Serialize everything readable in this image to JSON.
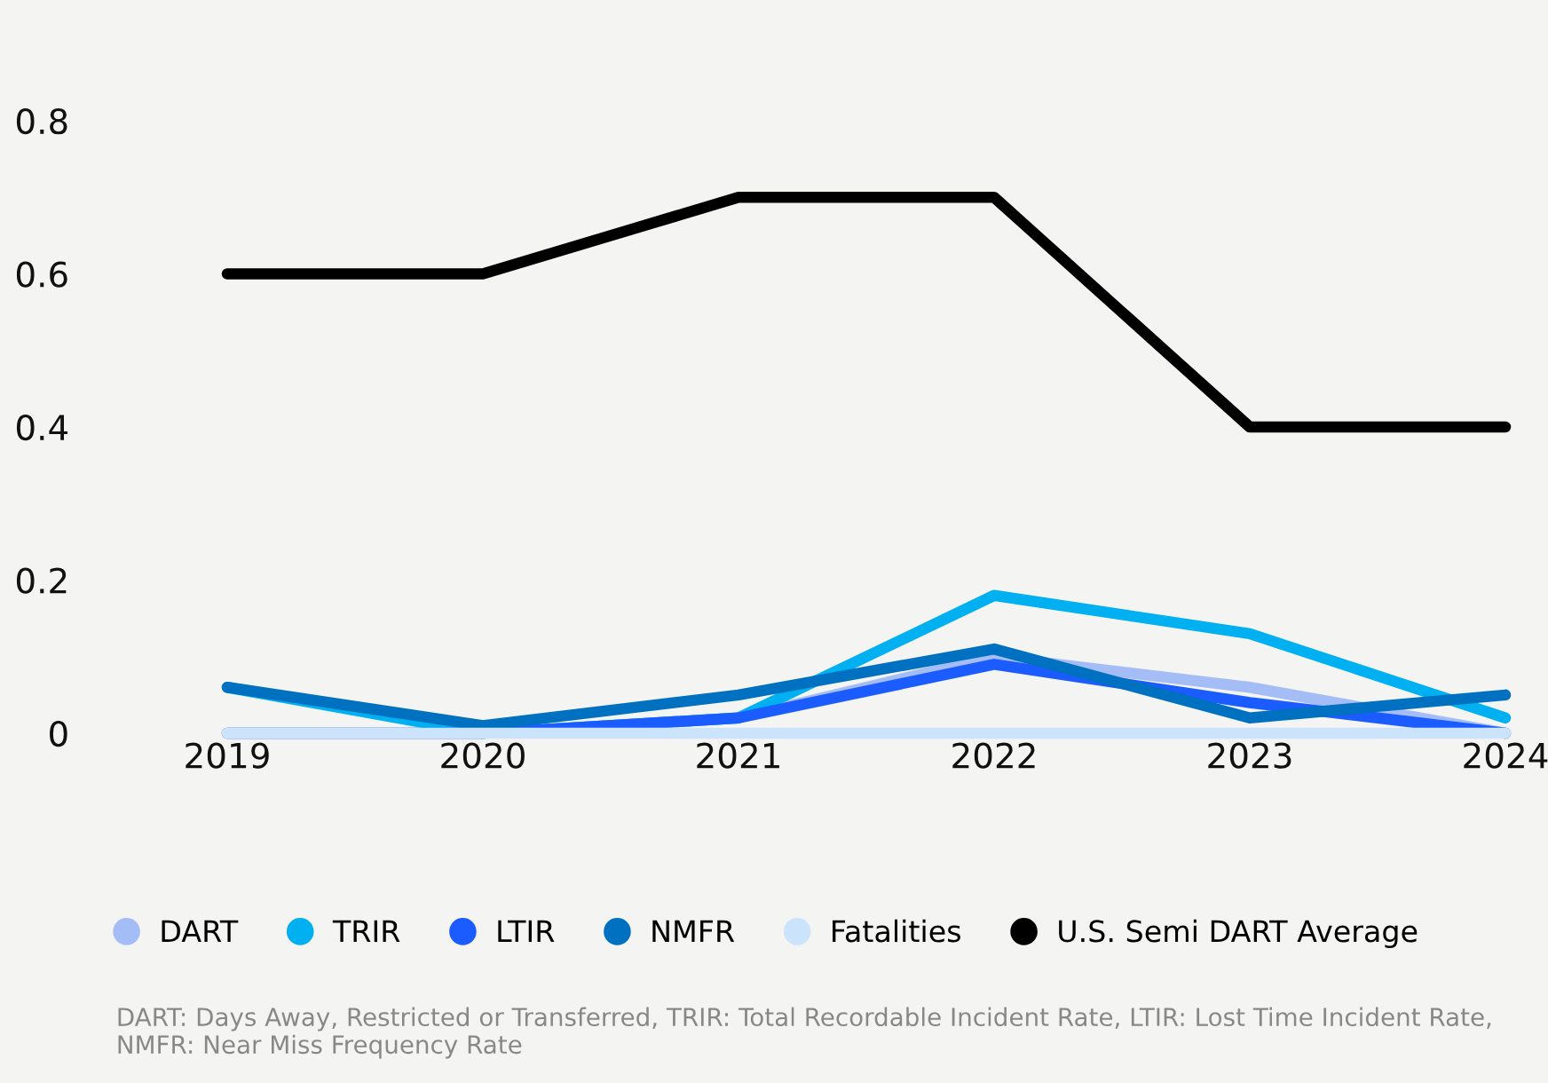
{
  "chart_data": {
    "type": "line",
    "categories": [
      "2019",
      "2020",
      "2021",
      "2022",
      "2023",
      "2024"
    ],
    "series": [
      {
        "name": "DART",
        "color": "#a4bdf7",
        "values": [
          0,
          0,
          0.02,
          0.1,
          0.06,
          0
        ]
      },
      {
        "name": "TRIR",
        "color": "#00b0f0",
        "values": [
          0.06,
          0,
          0.02,
          0.18,
          0.13,
          0.02
        ]
      },
      {
        "name": "LTIR",
        "color": "#1a5cff",
        "values": [
          0,
          0,
          0.02,
          0.09,
          0.04,
          0
        ]
      },
      {
        "name": "NMFR",
        "color": "#0070c0",
        "values": [
          0.06,
          0.01,
          0.05,
          0.11,
          0.02,
          0.05
        ]
      },
      {
        "name": "Fatalities",
        "color": "#cce4fb",
        "values": [
          0,
          0,
          0,
          0,
          0,
          0
        ]
      },
      {
        "name": "U.S. Semi DART Average",
        "color": "#000000",
        "values": [
          0.6,
          0.6,
          0.7,
          0.7,
          0.4,
          0.4
        ]
      }
    ],
    "ylim": [
      0,
      0.8
    ],
    "yticks": [
      0,
      0.2,
      0.4,
      0.6,
      0.8
    ],
    "grid": false,
    "legend": "bottom",
    "marker": "none",
    "line_style": "solid",
    "annotations": [
      "DART: Days Away, Restricted or Transferred, TRIR: Total Recordable Incident Rate, LTIR: Lost Time Incident Rate, NMFR: Near Miss Frequency Rate"
    ]
  }
}
